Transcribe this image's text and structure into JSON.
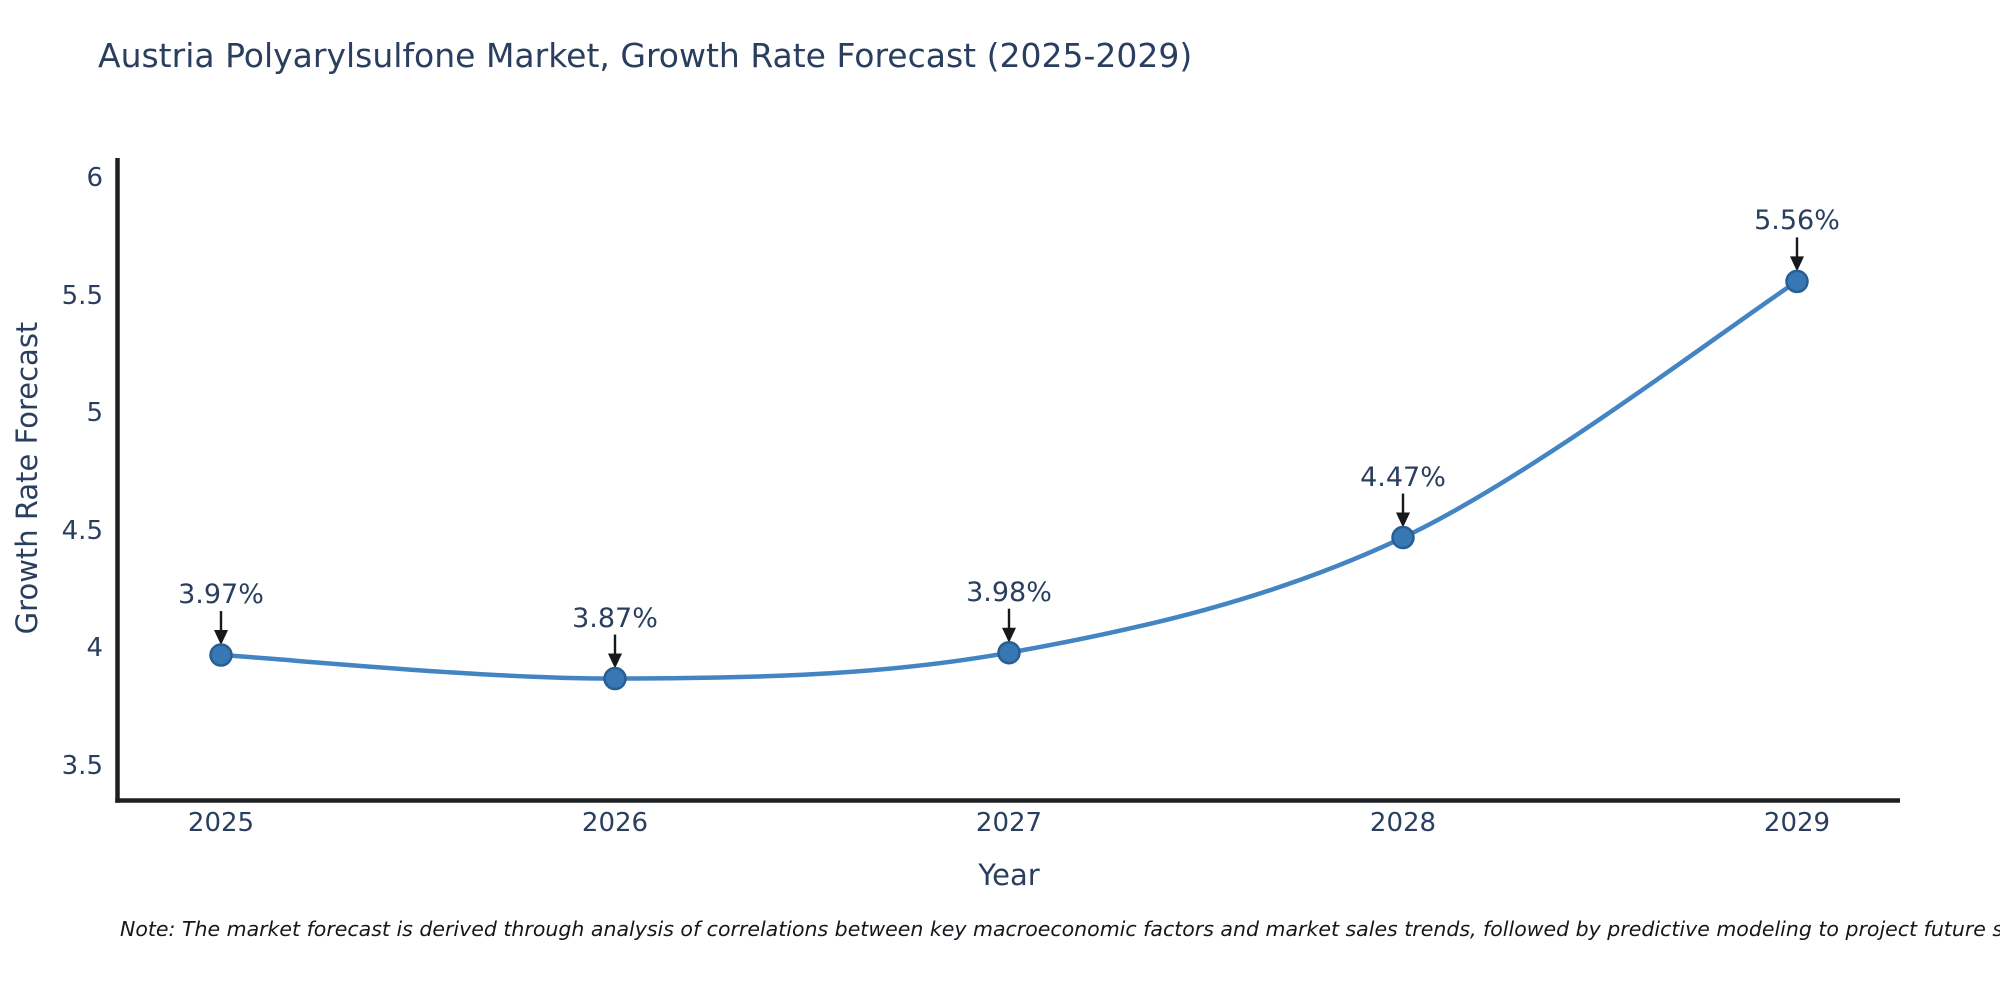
{
  "page": {
    "note": "Note: The market forecast is derived through analysis of correlations between key macroeconomic factors and market sales trends, followed by predictive modeling to project future sales"
  },
  "chart_data": {
    "type": "line",
    "title": "Austria Polyarylsulfone Market, Growth Rate Forecast (2025-2029)",
    "xlabel": "Year",
    "ylabel": "Growth Rate Forecast",
    "x": [
      2025,
      2026,
      2027,
      2028,
      2029
    ],
    "values": [
      3.97,
      3.87,
      3.98,
      4.47,
      5.56
    ],
    "unit": "%",
    "annotations": [
      "3.97%",
      "3.87%",
      "3.98%",
      "4.47%",
      "5.56%"
    ],
    "xtick_labels": [
      "2025",
      "2026",
      "2027",
      "2028",
      "2029"
    ],
    "ytick_values": [
      6,
      5.5,
      5,
      4.5,
      4,
      3.5
    ],
    "ytick_labels": [
      "6",
      "5.5",
      "5",
      "4.5",
      "4",
      "3.5"
    ],
    "ylim": [
      3.36,
      6.09
    ],
    "grid": false,
    "legend": false,
    "line_shape": "spline",
    "colors": {
      "line": "#4384c3",
      "marker": "#3777b3",
      "marker_edge": "#2a5d92",
      "text": "#2a3f5f",
      "axis": "#1c2022",
      "arrow": "#16181c"
    }
  }
}
